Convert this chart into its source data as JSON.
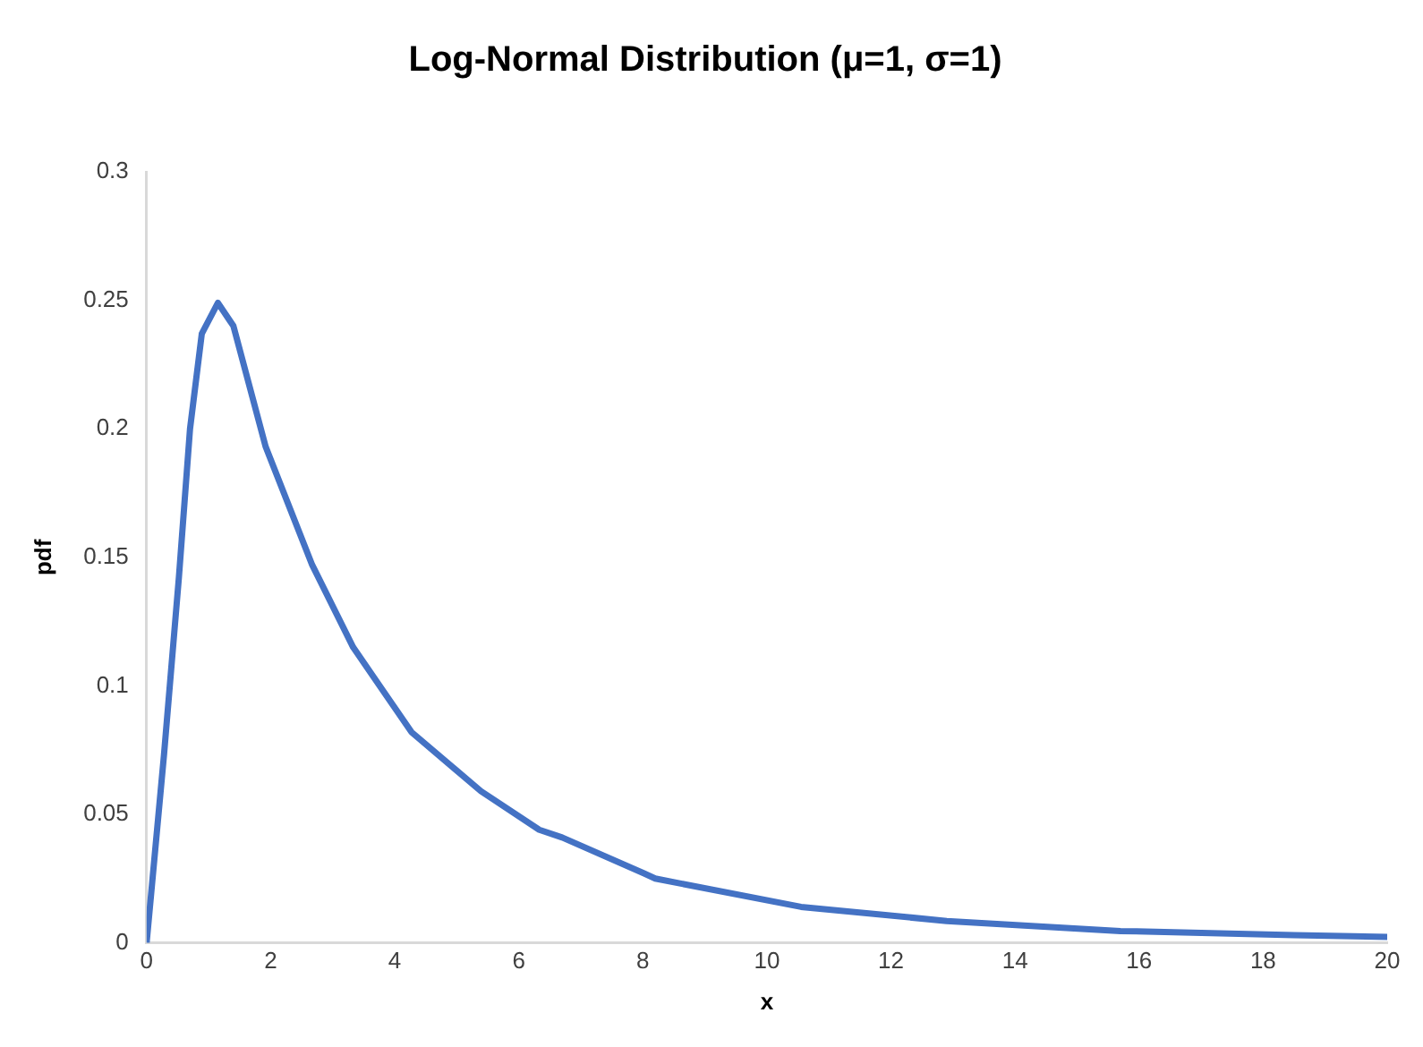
{
  "chart_data": {
    "type": "line",
    "title": "Log-Normal Distribution (μ=1, σ=1)",
    "xlabel": "x",
    "ylabel": "pdf",
    "series": [
      {
        "color": "#4472c4",
        "x": [
          0,
          0.28,
          0.52,
          0.7,
          0.89,
          1.15,
          1.4,
          1.92,
          2.67,
          3.33,
          4.27,
          5.39,
          6.33,
          6.7,
          8.02,
          8.2,
          10.55,
          12.9,
          15.7,
          18.5,
          20
        ],
        "values": [
          0,
          0.073,
          0.142,
          0.2,
          0.237,
          0.249,
          0.24,
          0.193,
          0.147,
          0.115,
          0.082,
          0.059,
          0.044,
          0.041,
          0.027,
          0.025,
          0.014,
          0.0085,
          0.0046,
          0.003,
          0.0023
        ]
      }
    ],
    "xlim": [
      0,
      20
    ],
    "xticks": [
      0,
      2,
      4,
      6,
      8,
      10,
      12,
      14,
      16,
      18,
      20
    ],
    "ylim": [
      0,
      0.3
    ],
    "yticks": [
      0,
      0.05,
      0.1,
      0.15,
      0.2,
      0.25,
      0.3
    ],
    "grid": false,
    "legend": false,
    "marker": "none",
    "line_style": "solid"
  }
}
